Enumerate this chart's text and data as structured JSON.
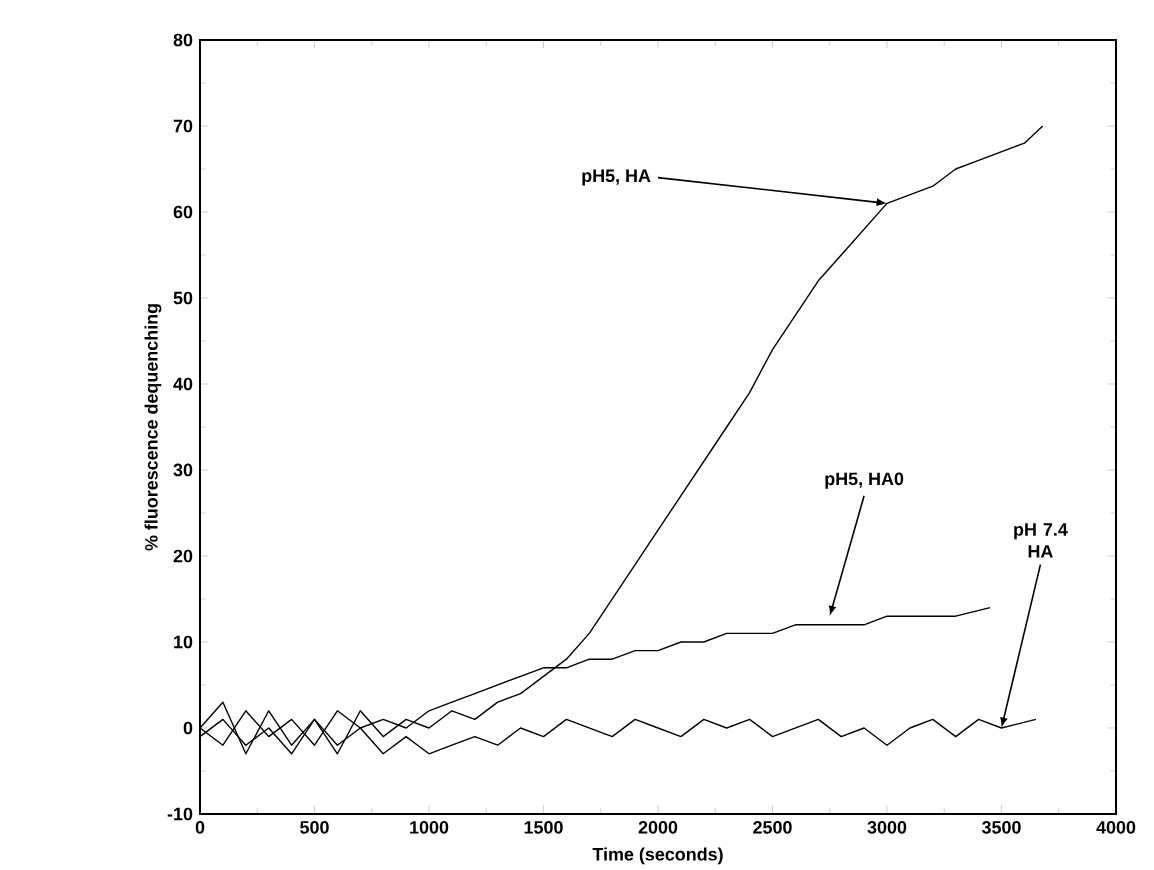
{
  "chart_data": {
    "type": "line",
    "xlabel": "Time  (seconds)",
    "ylabel": "% fluorescence dequenching",
    "xlim": [
      0,
      4000
    ],
    "xticks": [
      0,
      500,
      1000,
      1500,
      2000,
      2500,
      3000,
      3500,
      4000
    ],
    "ylim": [
      -10,
      80
    ],
    "yticks": [
      -10,
      0,
      10,
      20,
      30,
      40,
      50,
      60,
      70,
      80
    ],
    "marker": "none",
    "line_style": "solid",
    "series": [
      {
        "color": "#000000",
        "x": [
          0,
          100,
          200,
          300,
          400,
          500,
          600,
          700,
          800,
          900,
          1000,
          1100,
          1200,
          1300,
          1400,
          1500,
          1600,
          1700,
          1800,
          1900,
          2000,
          2100,
          2200,
          2300,
          2400,
          2500,
          2600,
          2700,
          2800,
          2900,
          3000,
          3100,
          3200,
          3300,
          3400,
          3500,
          3600,
          3680
        ],
        "values": [
          0,
          3,
          -3,
          2,
          -2,
          1,
          -3,
          2,
          -1,
          1,
          0,
          2,
          1,
          3,
          4,
          6,
          8,
          11,
          15,
          19,
          23,
          27,
          31,
          35,
          39,
          44,
          48,
          52,
          55,
          58,
          61,
          62,
          63,
          65,
          66,
          67,
          68,
          70
        ]
      },
      {
        "color": "#000000",
        "x": [
          0,
          100,
          200,
          300,
          400,
          500,
          600,
          700,
          800,
          900,
          1000,
          1100,
          1200,
          1300,
          1400,
          1500,
          1600,
          1700,
          1800,
          1900,
          2000,
          2100,
          2200,
          2300,
          2400,
          2500,
          2600,
          2700,
          2800,
          2900,
          3000,
          3100,
          3200,
          3300,
          3450
        ],
        "values": [
          0,
          -2,
          2,
          -1,
          1,
          -2,
          2,
          0,
          1,
          0,
          2,
          3,
          4,
          5,
          6,
          7,
          7,
          8,
          8,
          9,
          9,
          10,
          10,
          11,
          11,
          11,
          12,
          12,
          12,
          12,
          13,
          13,
          13,
          13,
          14
        ]
      },
      {
        "color": "#000000",
        "x": [
          0,
          100,
          200,
          300,
          400,
          500,
          600,
          700,
          800,
          900,
          1000,
          1100,
          1200,
          1300,
          1400,
          1500,
          1600,
          1700,
          1800,
          1900,
          2000,
          2100,
          2200,
          2300,
          2400,
          2500,
          2600,
          2700,
          2800,
          2900,
          3000,
          3100,
          3200,
          3300,
          3400,
          3500,
          3650
        ],
        "values": [
          -1,
          1,
          -2,
          0,
          -3,
          1,
          -2,
          0,
          -3,
          -1,
          -3,
          -2,
          -1,
          -2,
          0,
          -1,
          1,
          0,
          -1,
          1,
          0,
          -1,
          1,
          0,
          1,
          -1,
          0,
          1,
          -1,
          0,
          -2,
          0,
          1,
          -1,
          1,
          0,
          1
        ]
      }
    ],
    "annotations": [
      {
        "text": "pH5, HA",
        "x": 3000,
        "y": 61
      },
      {
        "text": "pH5, HA0",
        "x": 2750,
        "y": 13
      },
      {
        "text": "pH 7.4 HA",
        "x": 3500,
        "y": 0
      }
    ]
  }
}
